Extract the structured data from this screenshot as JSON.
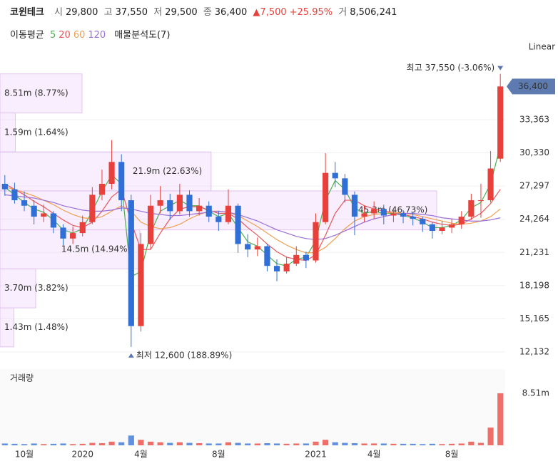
{
  "header": {
    "name": "코윈테크",
    "open_label": "시",
    "open": "29,800",
    "high_label": "고",
    "high": "37,550",
    "low_label": "저",
    "low": "29,500",
    "close_label": "종",
    "close": "36,400",
    "change": "▲7,500",
    "change_pct": "+25.95%",
    "volume_label": "거",
    "volume": "8,506,241"
  },
  "chart_data": {
    "type": "candlestick",
    "scale_label": "Linear",
    "categories": [
      null,
      null,
      "10월",
      null,
      null,
      null,
      null,
      null,
      "2020",
      null,
      null,
      null,
      null,
      null,
      "4월",
      null,
      null,
      null,
      null,
      null,
      null,
      null,
      "8월",
      null,
      null,
      null,
      null,
      null,
      null,
      null,
      null,
      null,
      "2021",
      null,
      null,
      null,
      null,
      null,
      "4월",
      null,
      null,
      null,
      null,
      null,
      null,
      null,
      "8월",
      null,
      null,
      null,
      null,
      null
    ],
    "open": [
      27500,
      27000,
      26000,
      25500,
      24500,
      24800,
      23500,
      22500,
      23000,
      24000,
      26500,
      27500,
      29500,
      26000,
      14500,
      22000,
      25500,
      26000,
      25000,
      26500,
      25000,
      25500,
      24500,
      24000,
      25500,
      22000,
      21500,
      21800,
      20000,
      19500,
      20200,
      21000,
      20500,
      24000,
      28500,
      28000,
      26500,
      24500,
      24800,
      25200,
      24600,
      24800,
      24500,
      24300,
      23800,
      23200,
      23500,
      23800,
      24500,
      26000,
      26000,
      29800
    ],
    "high": [
      28300,
      27600,
      26800,
      26000,
      25600,
      25000,
      23800,
      23600,
      24600,
      27200,
      28800,
      31500,
      30200,
      26500,
      23000,
      26500,
      27300,
      26600,
      27500,
      26900,
      26200,
      25900,
      25000,
      27000,
      25700,
      22900,
      22600,
      22000,
      20600,
      20800,
      21800,
      21300,
      24800,
      30300,
      29500,
      28400,
      26800,
      25500,
      25900,
      25600,
      25300,
      25100,
      24900,
      24500,
      24000,
      24100,
      24300,
      25000,
      26600,
      27500,
      30500,
      37550
    ],
    "low": [
      26400,
      25700,
      25000,
      23800,
      24000,
      23000,
      21900,
      22000,
      22700,
      23800,
      26000,
      27000,
      25000,
      12600,
      14000,
      21500,
      24800,
      24200,
      24700,
      24500,
      24600,
      24000,
      23200,
      23800,
      21200,
      20800,
      20900,
      19500,
      18600,
      19300,
      20000,
      19800,
      20300,
      23800,
      27200,
      25800,
      22800,
      24000,
      24300,
      23800,
      24000,
      23900,
      23700,
      23100,
      22500,
      22900,
      23000,
      23400,
      24200,
      24400,
      25800,
      29500
    ],
    "close": [
      27000,
      26000,
      25500,
      24500,
      24800,
      23500,
      22500,
      23000,
      24000,
      26500,
      27500,
      29500,
      26000,
      14500,
      22000,
      25500,
      26000,
      25000,
      26500,
      25000,
      25500,
      24500,
      24000,
      25500,
      22000,
      21500,
      21800,
      20000,
      19500,
      20200,
      21000,
      20500,
      24000,
      28500,
      28000,
      26500,
      24500,
      24800,
      25200,
      24600,
      24800,
      24500,
      24300,
      23800,
      23200,
      23500,
      23800,
      24500,
      26000,
      26000,
      28900,
      36400
    ],
    "up_color": "#e8403a",
    "down_color": "#2f6fd6",
    "ylim": [
      11091,
      37789
    ],
    "yticks": [
      {
        "value": 12132,
        "label": "12,132"
      },
      {
        "value": 15165,
        "label": "15,165"
      },
      {
        "value": 18198,
        "label": "18,198"
      },
      {
        "value": 21231,
        "label": "21,231"
      },
      {
        "value": 24264,
        "label": "24,264"
      },
      {
        "value": 27297,
        "label": "27,297"
      },
      {
        "value": 30330,
        "label": "30,330"
      },
      {
        "value": 33363,
        "label": "33,363"
      }
    ],
    "grid": true,
    "price_tag": {
      "value": 36400,
      "label": "36,400"
    },
    "annotations": [
      {
        "label": "최고 37,550 (-3.06%)",
        "value": 37550
      },
      {
        "label": "최저 12,600 (188.89%)",
        "value": 12600
      }
    ],
    "ma_title": "이동평균",
    "series": [
      {
        "name": "5",
        "color": "#4caf50",
        "values": [
          27200,
          26500,
          25800,
          25200,
          24900,
          24200,
          23300,
          23000,
          23400,
          25000,
          26800,
          28300,
          27500,
          19000,
          19500,
          23000,
          25000,
          25500,
          26000,
          25500,
          25500,
          25000,
          24500,
          24800,
          23500,
          22200,
          21800,
          21000,
          20200,
          20000,
          20600,
          20800,
          22300,
          26000,
          27800,
          27000,
          25300,
          24800,
          25000,
          24800,
          24800,
          24600,
          24400,
          24000,
          23500,
          23500,
          23700,
          24200,
          25300,
          25800,
          27500,
          31000
        ]
      },
      {
        "name": "20",
        "color": "#e8575a",
        "values": [
          27500,
          27000,
          26500,
          25900,
          25400,
          24800,
          24200,
          23700,
          23500,
          24000,
          25000,
          26300,
          27000,
          24000,
          21500,
          21500,
          23000,
          24300,
          25200,
          25400,
          25400,
          25100,
          24800,
          24800,
          24300,
          23500,
          22800,
          22000,
          21300,
          20800,
          20600,
          20500,
          21000,
          22800,
          24800,
          26000,
          26000,
          25500,
          25200,
          25000,
          24900,
          24700,
          24500,
          24300,
          24000,
          23800,
          23700,
          23800,
          24300,
          24800,
          25700,
          27000
        ]
      },
      {
        "name": "60",
        "color": "#f0a050",
        "values": [
          27200,
          27000,
          26700,
          26400,
          26000,
          25600,
          25100,
          24700,
          24400,
          24300,
          24500,
          25000,
          25500,
          25000,
          24000,
          23600,
          23400,
          23500,
          23800,
          24300,
          24700,
          25000,
          25000,
          24900,
          24600,
          24100,
          23600,
          23000,
          22400,
          21900,
          21500,
          21200,
          21200,
          21700,
          22500,
          23400,
          24100,
          24500,
          24700,
          24800,
          24900,
          24800,
          24700,
          24500,
          24300,
          24100,
          23900,
          23800,
          23900,
          24100,
          24500,
          25200
        ]
      },
      {
        "name": "120",
        "color": "#9b6fd6",
        "values": [
          26500,
          26400,
          26300,
          26200,
          26000,
          25800,
          25500,
          25300,
          25100,
          25000,
          25000,
          25100,
          25300,
          25200,
          25000,
          24800,
          24700,
          24600,
          24600,
          24700,
          24800,
          24900,
          25000,
          24900,
          24700,
          24400,
          24100,
          23700,
          23300,
          23000,
          22700,
          22500,
          22400,
          22500,
          22800,
          23200,
          23600,
          24000,
          24300,
          24500,
          24700,
          24800,
          24800,
          24700,
          24600,
          24400,
          24300,
          24200,
          24100,
          24100,
          24200,
          24400
        ]
      }
    ],
    "volume_profile": {
      "title": "매물분석도(7)",
      "bands": [
        {
          "low": 33986,
          "high": 37550,
          "volume": 8.51,
          "label": "8.51m (8.77%)"
        },
        {
          "low": 30421,
          "high": 33986,
          "volume": 1.59,
          "label": "1.59m (1.64%)"
        },
        {
          "low": 26857,
          "high": 30421,
          "volume": 21.9,
          "label": "21.9m (22.63%)"
        },
        {
          "low": 23293,
          "high": 26857,
          "volume": 45.3,
          "label": "45.3m (46.73%)"
        },
        {
          "low": 19729,
          "high": 23293,
          "volume": 14.5,
          "label": "14.5m (14.94%)"
        },
        {
          "low": 16164,
          "high": 19729,
          "volume": 3.7,
          "label": "3.70m (3.82%)"
        },
        {
          "low": 12600,
          "high": 16164,
          "volume": 1.43,
          "label": "1.43m (1.48%)"
        }
      ]
    },
    "volume": {
      "title": "거래량",
      "ylim": [
        0,
        12.46
      ],
      "yticks": [
        {
          "value": 8.51,
          "label": "8.51m"
        }
      ],
      "values": [
        0.3,
        0.25,
        0.2,
        0.3,
        0.2,
        0.25,
        0.3,
        0.2,
        0.25,
        0.4,
        0.35,
        0.6,
        0.5,
        1.6,
        0.9,
        0.6,
        0.5,
        0.4,
        0.5,
        0.4,
        0.35,
        0.3,
        0.3,
        0.5,
        0.4,
        0.3,
        0.3,
        0.35,
        0.3,
        0.25,
        0.3,
        0.3,
        0.6,
        0.9,
        0.5,
        0.4,
        0.35,
        0.3,
        0.3,
        0.3,
        0.25,
        0.25,
        0.25,
        0.2,
        0.25,
        0.2,
        0.25,
        0.3,
        0.6,
        0.4,
        2.9,
        8.51
      ]
    }
  }
}
